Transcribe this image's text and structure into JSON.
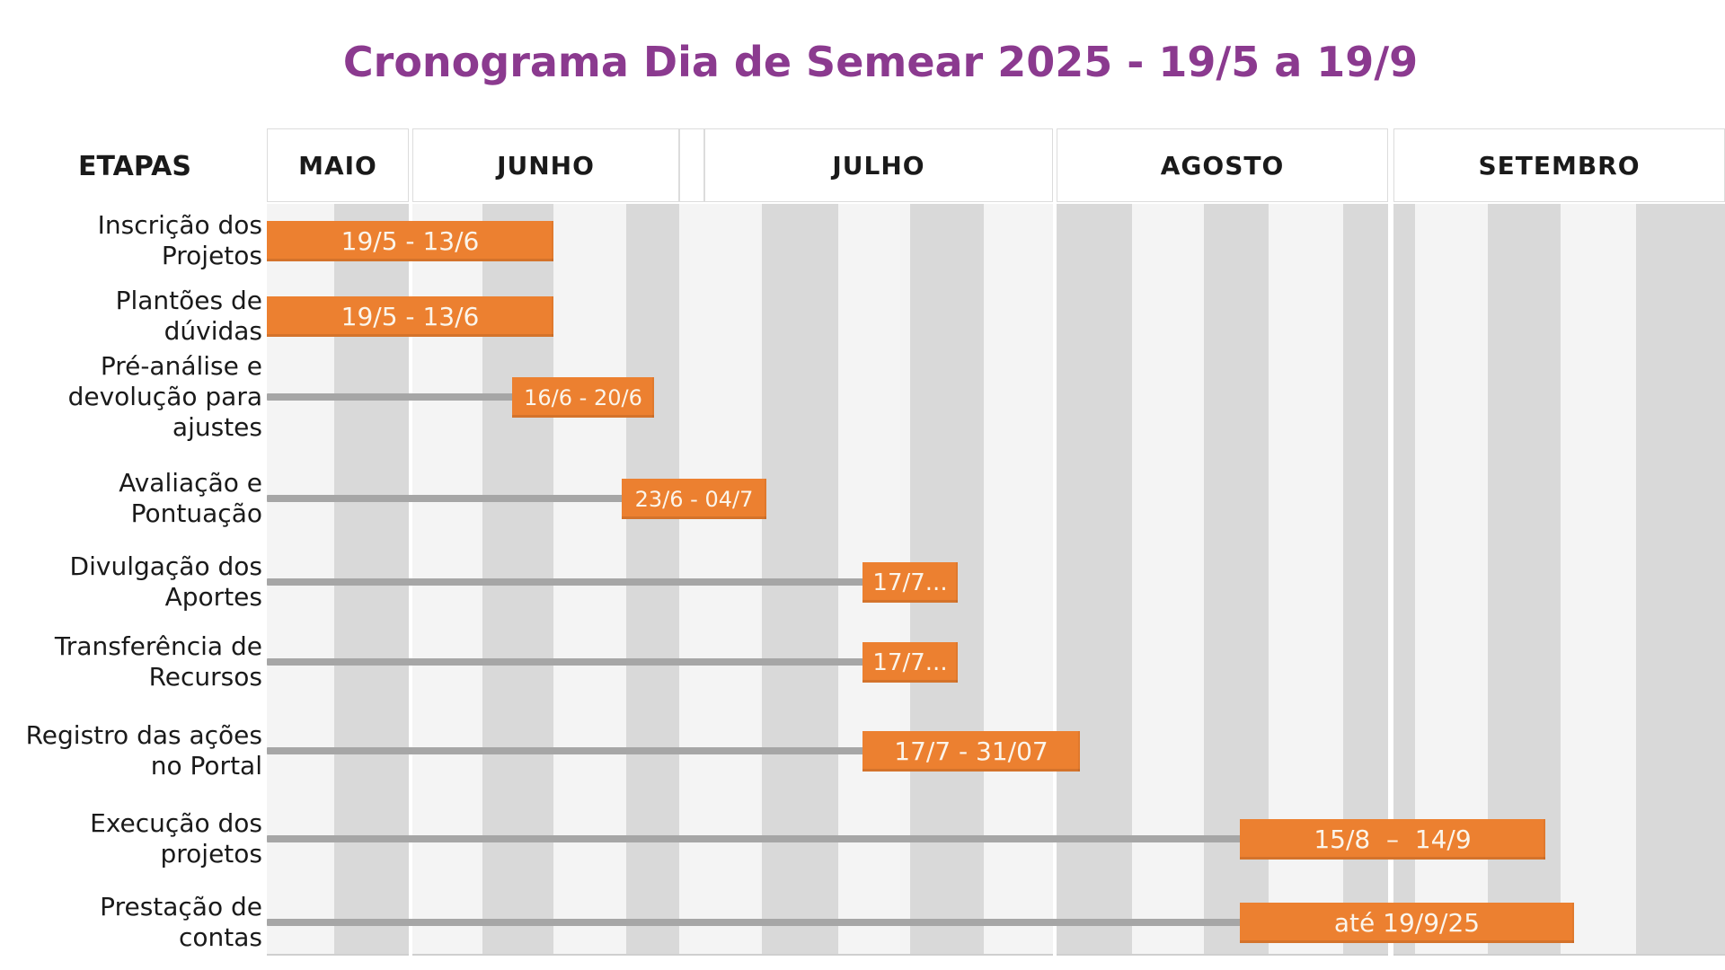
{
  "title": "Cronograma Dia de Semear 2025 - 19/5 a 19/9",
  "etapas_header": "ETAPAS",
  "colors": {
    "title_purple": "#8B3A8F",
    "bar_orange": "#EC8030",
    "bar_text": "#FBF5EB",
    "stripe_dark": "#D9D9D9",
    "stripe_light": "#F4F4F4",
    "leader_gray": "#A6A6A6",
    "text_dark": "#1A1A1A"
  },
  "chart_data": {
    "type": "gantt",
    "title": "Cronograma Dia de Semear 2025 - 19/5 a 19/9",
    "period": {
      "start": "19/5",
      "end": "19/9"
    },
    "months": [
      "MAIO",
      "JUNHO",
      "JULHO",
      "AGOSTO",
      "SETEMBRO"
    ],
    "legend_position": "none",
    "tasks": [
      {
        "name": "Inscrição dos Projetos",
        "name_lines": [
          "Inscrição dos",
          "Projetos"
        ],
        "bar_label": "19/5 - 13/6",
        "start": "19/5",
        "end": "13/6"
      },
      {
        "name": "Plantões de dúvidas",
        "name_lines": [
          "Plantões de",
          "dúvidas"
        ],
        "bar_label": "19/5 - 13/6",
        "start": "19/5",
        "end": "13/6"
      },
      {
        "name": "Pré-análise e devolução para ajustes",
        "name_lines": [
          "Pré-análise e",
          "devolução para",
          "ajustes"
        ],
        "bar_label": "16/6 - 20/6",
        "start": "16/6",
        "end": "20/6"
      },
      {
        "name": "Avaliação e Pontuação",
        "name_lines": [
          "Avaliação e",
          "Pontuação"
        ],
        "bar_label": "23/6 - 04/7",
        "start": "23/6",
        "end": "04/7"
      },
      {
        "name": "Divulgação dos Aportes",
        "name_lines": [
          "Divulgação dos",
          "Aportes"
        ],
        "bar_label": "17/7...",
        "start": "17/7",
        "end": ""
      },
      {
        "name": "Transferência de Recursos",
        "name_lines": [
          "Transferência de",
          "Recursos"
        ],
        "bar_label": "17/7...",
        "start": "17/7",
        "end": ""
      },
      {
        "name": "Registro das ações no Portal",
        "name_lines": [
          "Registro das ações",
          "no Portal"
        ],
        "bar_label": "17/7 - 31/07",
        "start": "17/7",
        "end": "31/07"
      },
      {
        "name": "Execução dos projetos",
        "name_lines": [
          "Execução dos",
          "projetos"
        ],
        "bar_label": "15/8  –  14/9",
        "start": "15/8",
        "end": "14/9"
      },
      {
        "name": "Prestação de contas",
        "name_lines": [
          "Prestação de",
          "contas"
        ],
        "bar_label": "até 19/9/25",
        "start": "",
        "end": "19/9/25"
      }
    ]
  }
}
